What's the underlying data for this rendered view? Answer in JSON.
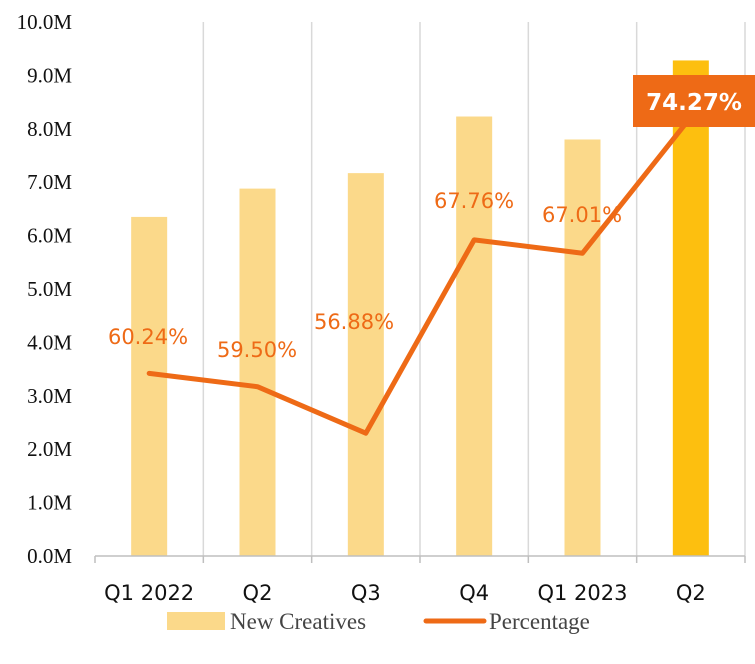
{
  "chart_data": {
    "type": "bar",
    "categories": [
      "Q1 2022",
      "Q2",
      "Q3",
      "Q4",
      "Q1 2023",
      "Q2"
    ],
    "series": [
      {
        "name": "New Creatives",
        "type": "bar",
        "values": [
          6.35,
          6.88,
          7.17,
          8.23,
          7.8,
          9.28
        ],
        "color": "#FBD98A",
        "highlight_color": "#FDBF0F",
        "highlight_index": 5
      },
      {
        "name": "Percentage",
        "type": "line",
        "values": [
          60.24,
          59.5,
          56.88,
          67.76,
          67.01,
          74.27
        ],
        "labels": [
          "60.24%",
          "59.50%",
          "56.88%",
          "67.76%",
          "67.01%",
          "74.27%"
        ],
        "plotted_at": [
          3.42,
          3.17,
          2.3,
          5.92,
          5.67,
          8.22
        ],
        "color": "#EE6A16"
      }
    ],
    "y_ticks": [
      "0.0M",
      "1.0M",
      "2.0M",
      "3.0M",
      "4.0M",
      "5.0M",
      "6.0M",
      "7.0M",
      "8.0M",
      "9.0M",
      "10.0M"
    ],
    "ylim": [
      0,
      10
    ],
    "grid": "vertical",
    "legend_position": "bottom-center",
    "highlight_label_bg": "#EE6A16"
  }
}
